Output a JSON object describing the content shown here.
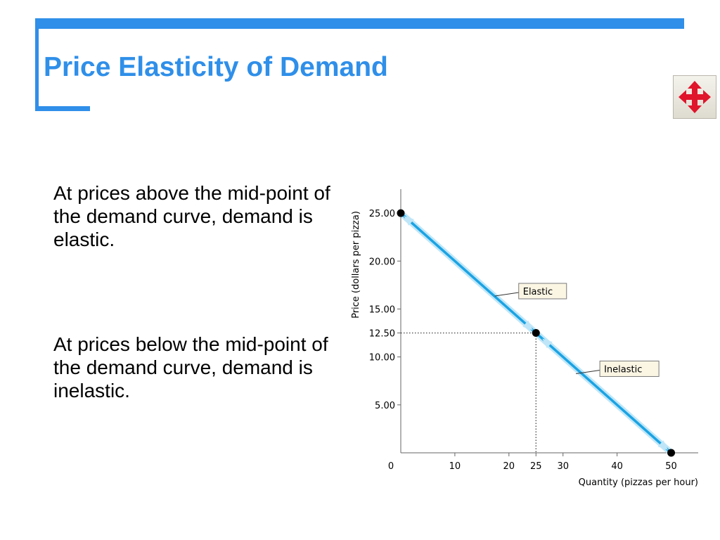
{
  "slide": {
    "title": "Price Elasticity of Demand",
    "paragraphs": [
      "At prices above the mid-point of the demand curve, demand is elastic.",
      "At prices below the mid-point of the demand curve, demand is inelastic."
    ],
    "nav_icon": "four-way-arrow-icon",
    "colors": {
      "accent": "#2f8fe9",
      "curve": "#1aa3e3",
      "curve_glow": "#bfe6f8",
      "nav_arrow": "#e0142b"
    }
  },
  "chart_data": {
    "type": "line",
    "xlabel": "Quantity (pizzas per hour)",
    "ylabel": "Price (dollars per pizza)",
    "xlim": [
      0,
      55
    ],
    "ylim": [
      0,
      27.5
    ],
    "x_ticks": [
      0,
      10,
      20,
      25,
      30,
      40,
      50
    ],
    "x_tick_labels": [
      "0",
      "10",
      "20",
      "25",
      "30",
      "40",
      "50"
    ],
    "y_ticks": [
      5,
      10,
      12.5,
      15,
      20,
      25
    ],
    "y_tick_labels": [
      "5.00",
      "10.00",
      "12.50",
      "15.00",
      "20.00",
      "25.00"
    ],
    "grid": false,
    "series": [
      {
        "x": [
          0,
          50
        ],
        "y": [
          25,
          0
        ]
      }
    ],
    "points": [
      {
        "x": 0,
        "y": 25
      },
      {
        "x": 25,
        "y": 12.5
      },
      {
        "x": 50,
        "y": 0
      }
    ],
    "reference_lines": [
      {
        "x": 25,
        "y": 12.5,
        "style": "dotted"
      }
    ],
    "annotations": [
      {
        "text": "Elastic",
        "x": 17,
        "y": 16.5
      },
      {
        "text": "Inelastic",
        "x": 32,
        "y": 8.4
      }
    ]
  }
}
